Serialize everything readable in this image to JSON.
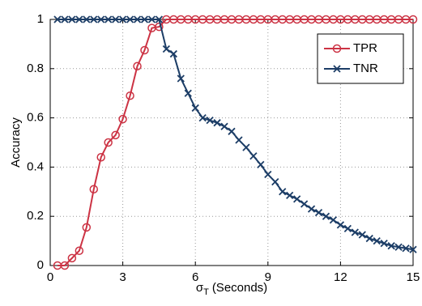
{
  "chart_data": {
    "type": "line",
    "ylabel": "Accuracy",
    "xlabel": {
      "symbol": "σ",
      "subscript": "T",
      "text": "(Seconds)"
    },
    "x": [
      0.3,
      0.6,
      0.9,
      1.2,
      1.5,
      1.8,
      2.1,
      2.4,
      2.7,
      3,
      3.3,
      3.6,
      3.9,
      4.2,
      4.5,
      4.8,
      5.1,
      5.4,
      5.7,
      6,
      6.3,
      6.6,
      6.9,
      7.2,
      7.5,
      7.8,
      8.1,
      8.4,
      8.7,
      9,
      9.3,
      9.6,
      9.9,
      10.2,
      10.5,
      10.8,
      11.1,
      11.4,
      11.7,
      12,
      12.3,
      12.6,
      12.9,
      13.2,
      13.5,
      13.8,
      14.1,
      14.4,
      14.7,
      15
    ],
    "series": [
      {
        "name": "TPR",
        "color": "#cc3344",
        "marker": "circle",
        "values": [
          0,
          0,
          0.03,
          0.06,
          0.155,
          0.31,
          0.44,
          0.5,
          0.53,
          0.595,
          0.69,
          0.81,
          0.875,
          0.965,
          0.97,
          1,
          1,
          1,
          1,
          1,
          1,
          1,
          1,
          1,
          1,
          1,
          1,
          1,
          1,
          1,
          1,
          1,
          1,
          1,
          1,
          1,
          1,
          1,
          1,
          1,
          1,
          1,
          1,
          1,
          1,
          1,
          1,
          1,
          1,
          1
        ]
      },
      {
        "name": "TNR",
        "color": "#1c3d66",
        "marker": "x",
        "values": [
          1,
          1,
          1,
          1,
          1,
          1,
          1,
          1,
          1,
          1,
          1,
          1,
          1,
          1,
          1,
          0.88,
          0.86,
          0.76,
          0.7,
          0.64,
          0.6,
          0.59,
          0.58,
          0.565,
          0.545,
          0.51,
          0.48,
          0.445,
          0.41,
          0.37,
          0.34,
          0.3,
          0.285,
          0.27,
          0.25,
          0.23,
          0.215,
          0.2,
          0.185,
          0.165,
          0.15,
          0.135,
          0.125,
          0.11,
          0.1,
          0.09,
          0.08,
          0.075,
          0.07,
          0.065
        ]
      }
    ],
    "xlim": [
      0,
      15
    ],
    "xticks": [
      0,
      3,
      6,
      9,
      12,
      15
    ],
    "ylim": [
      0,
      1
    ],
    "yticks": [
      0,
      0.2,
      0.4,
      0.6,
      0.8,
      1
    ],
    "grid": true,
    "legend": "top-right"
  }
}
